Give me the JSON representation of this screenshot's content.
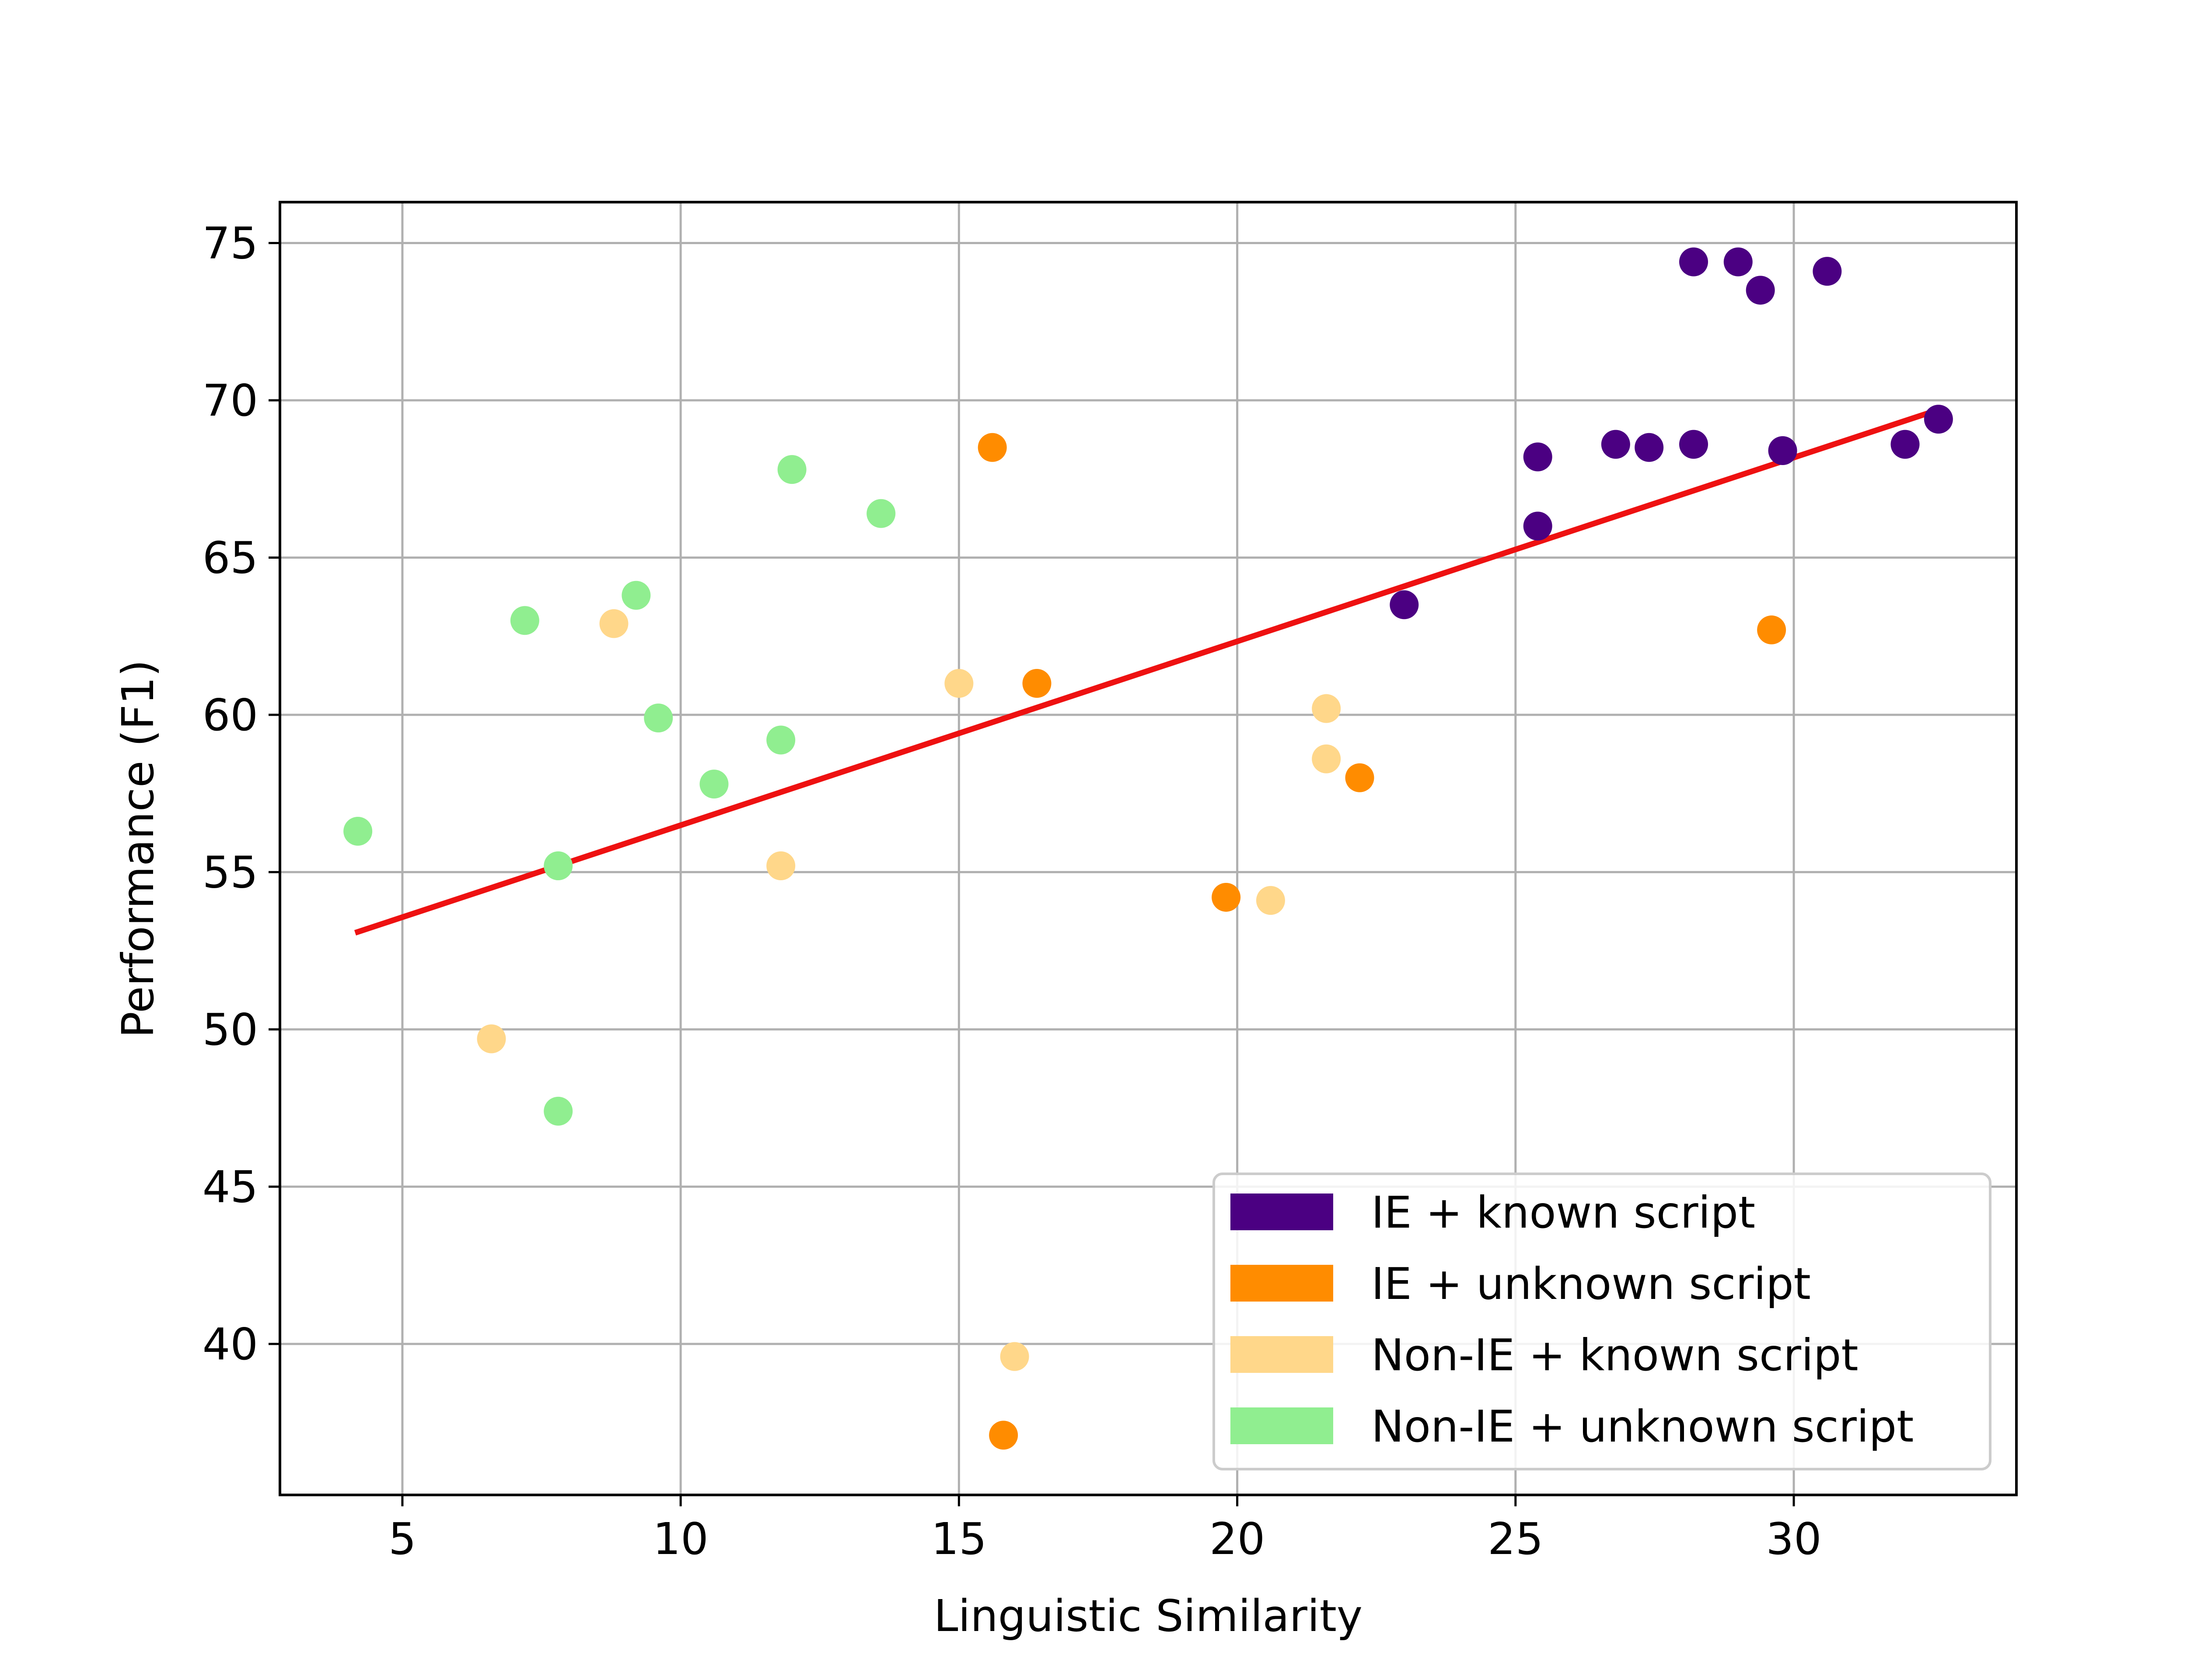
{
  "chart_data": {
    "type": "scatter",
    "title": "",
    "xlabel": "Linguistic Similarity",
    "ylabel": "Performance (F1)",
    "xlim": [
      2.8,
      34.0
    ],
    "ylim": [
      35.2,
      76.3
    ],
    "xticks": [
      5,
      10,
      15,
      20,
      25,
      30
    ],
    "yticks": [
      40,
      45,
      50,
      55,
      60,
      65,
      70,
      75
    ],
    "grid": true,
    "legend_position": "lower-right",
    "trend_line": {
      "x": [
        4.2,
        32.6
      ],
      "y": [
        53.1,
        69.7
      ],
      "color": "#ee1111"
    },
    "series": [
      {
        "name": "IE + known script",
        "color": "#4b0082",
        "points": [
          [
            23.0,
            63.5
          ],
          [
            25.4,
            66.0
          ],
          [
            25.4,
            68.2
          ],
          [
            26.8,
            68.6
          ],
          [
            27.4,
            68.5
          ],
          [
            28.2,
            68.6
          ],
          [
            28.2,
            74.4
          ],
          [
            29.0,
            74.4
          ],
          [
            29.4,
            73.5
          ],
          [
            29.8,
            68.4
          ],
          [
            30.6,
            74.1
          ],
          [
            32.0,
            68.6
          ],
          [
            32.6,
            69.4
          ]
        ]
      },
      {
        "name": "IE + unknown script",
        "color": "#ff8c00",
        "points": [
          [
            15.6,
            68.5
          ],
          [
            16.4,
            61.0
          ],
          [
            15.8,
            37.1
          ],
          [
            19.8,
            54.2
          ],
          [
            22.2,
            58.0
          ],
          [
            29.6,
            62.7
          ]
        ]
      },
      {
        "name": "Non-IE + known script",
        "color": "#ffd78a",
        "points": [
          [
            8.8,
            62.9
          ],
          [
            6.6,
            49.7
          ],
          [
            11.8,
            55.2
          ],
          [
            15.0,
            61.0
          ],
          [
            16.0,
            39.6
          ],
          [
            20.6,
            54.1
          ],
          [
            21.6,
            60.2
          ],
          [
            21.6,
            58.6
          ]
        ]
      },
      {
        "name": "Non-IE + unknown script",
        "color": "#90ee90",
        "points": [
          [
            4.2,
            56.3
          ],
          [
            7.2,
            63.0
          ],
          [
            7.8,
            55.2
          ],
          [
            7.8,
            47.4
          ],
          [
            9.2,
            63.8
          ],
          [
            9.6,
            59.9
          ],
          [
            10.6,
            57.8
          ],
          [
            11.8,
            59.2
          ],
          [
            12.0,
            67.8
          ],
          [
            13.6,
            66.4
          ]
        ]
      }
    ]
  }
}
